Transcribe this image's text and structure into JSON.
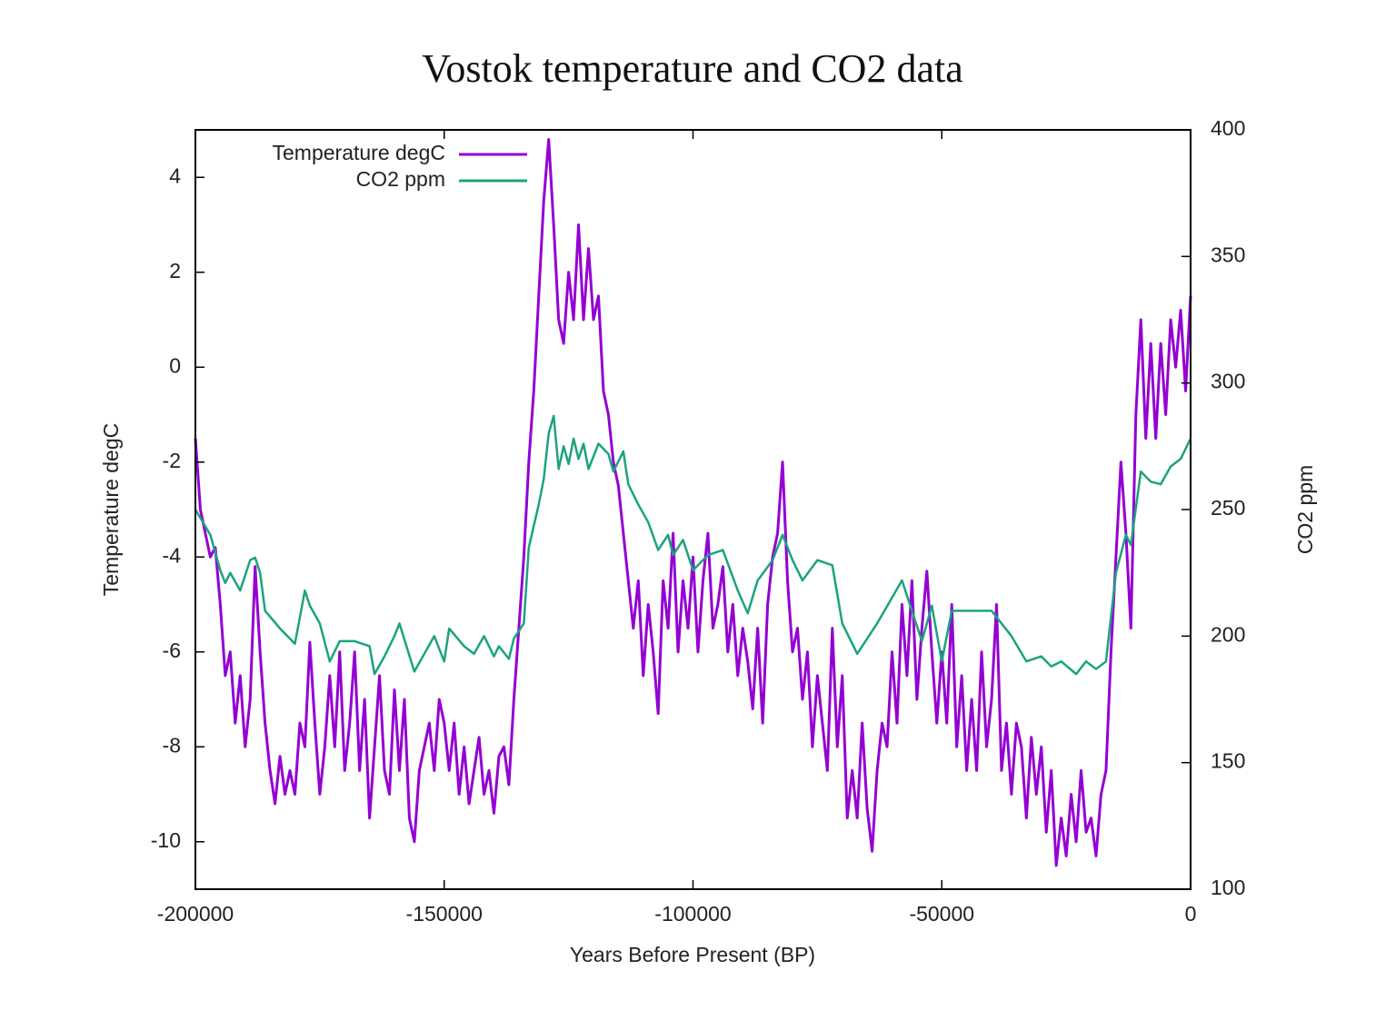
{
  "chart_data": {
    "type": "line",
    "title": "Vostok temperature and CO2 data",
    "xlabel": "Years Before Present (BP)",
    "ylabel": "Temperature degC",
    "y2label": "CO2 ppm",
    "xlim": [
      -200000,
      0
    ],
    "xticks": [
      -200000,
      -150000,
      -100000,
      -50000,
      0
    ],
    "ylim": [
      -11,
      5
    ],
    "yticks": [
      -10,
      -8,
      -6,
      -4,
      -2,
      0,
      2,
      4
    ],
    "y2lim": [
      100,
      400
    ],
    "y2ticks": [
      100,
      150,
      200,
      250,
      300,
      350,
      400
    ],
    "legend": "top-left",
    "series": [
      {
        "name": "Temperature degC",
        "color": "#9400d3",
        "x": [
          -200000,
          -199000,
          -198000,
          -197000,
          -196000,
          -195000,
          -194000,
          -193000,
          -192000,
          -191000,
          -190000,
          -189000,
          -188000,
          -187000,
          -186000,
          -185000,
          -184000,
          -183000,
          -182000,
          -181000,
          -180000,
          -179000,
          -178000,
          -177000,
          -176000,
          -175000,
          -174000,
          -173000,
          -172000,
          -171000,
          -170000,
          -169000,
          -168000,
          -167000,
          -166000,
          -165000,
          -164000,
          -163000,
          -162000,
          -161000,
          -160000,
          -159000,
          -158000,
          -157000,
          -156000,
          -155000,
          -154000,
          -153000,
          -152000,
          -151000,
          -150000,
          -149000,
          -148000,
          -147000,
          -146000,
          -145000,
          -144000,
          -143000,
          -142000,
          -141000,
          -140000,
          -139000,
          -138000,
          -137000,
          -136000,
          -135000,
          -134000,
          -133000,
          -132000,
          -131000,
          -130000,
          -129000,
          -128000,
          -127000,
          -126000,
          -125000,
          -124000,
          -123000,
          -122000,
          -121000,
          -120000,
          -119000,
          -118000,
          -117000,
          -116000,
          -115000,
          -114000,
          -113000,
          -112000,
          -111000,
          -110000,
          -109000,
          -108000,
          -107000,
          -106000,
          -105000,
          -104000,
          -103000,
          -102000,
          -101000,
          -100000,
          -99000,
          -98000,
          -97000,
          -96000,
          -95000,
          -94000,
          -93000,
          -92000,
          -91000,
          -90000,
          -89000,
          -88000,
          -87000,
          -86000,
          -85000,
          -84000,
          -83000,
          -82000,
          -81000,
          -80000,
          -79000,
          -78000,
          -77000,
          -76000,
          -75000,
          -74000,
          -73000,
          -72000,
          -71000,
          -70000,
          -69000,
          -68000,
          -67000,
          -66000,
          -65000,
          -64000,
          -63000,
          -62000,
          -61000,
          -60000,
          -59000,
          -58000,
          -57000,
          -56000,
          -55000,
          -54000,
          -53000,
          -52000,
          -51000,
          -50000,
          -49000,
          -48000,
          -47000,
          -46000,
          -45000,
          -44000,
          -43000,
          -42000,
          -41000,
          -40000,
          -39000,
          -38000,
          -37000,
          -36000,
          -35000,
          -34000,
          -33000,
          -32000,
          -31000,
          -30000,
          -29000,
          -28000,
          -27000,
          -26000,
          -25000,
          -24000,
          -23000,
          -22000,
          -21000,
          -20000,
          -19000,
          -18000,
          -17000,
          -16000,
          -15000,
          -14000,
          -13000,
          -12000,
          -11000,
          -10000,
          -9000,
          -8000,
          -7000,
          -6000,
          -5000,
          -4000,
          -3000,
          -2000,
          -1000,
          0
        ],
        "values": [
          -1.5,
          -3,
          -3.5,
          -4,
          -3.8,
          -5,
          -6.5,
          -6,
          -7.5,
          -6.5,
          -8,
          -7,
          -4.2,
          -6,
          -7.5,
          -8.5,
          -9.2,
          -8.2,
          -9,
          -8.5,
          -9,
          -7.5,
          -8,
          -5.8,
          -7.5,
          -9,
          -8,
          -6.5,
          -8,
          -6,
          -8.5,
          -7.5,
          -6,
          -8.5,
          -7,
          -9.5,
          -8,
          -6.5,
          -8.5,
          -9,
          -6.8,
          -8.5,
          -7,
          -9.5,
          -10,
          -8.5,
          -8,
          -7.5,
          -8.5,
          -7,
          -7.5,
          -8.5,
          -7.5,
          -9,
          -8,
          -9.2,
          -8.5,
          -7.8,
          -9,
          -8.5,
          -9.4,
          -8.2,
          -8,
          -8.8,
          -7,
          -5.5,
          -4,
          -2,
          -0.5,
          1.5,
          3.5,
          4.8,
          3,
          1,
          0.5,
          2,
          1,
          3,
          1,
          2.5,
          1,
          1.5,
          -0.5,
          -1,
          -2,
          -2.5,
          -3.5,
          -4.5,
          -5.5,
          -4.5,
          -6.5,
          -5,
          -6,
          -7.3,
          -4.5,
          -5.5,
          -3.5,
          -6,
          -4.5,
          -5.5,
          -4,
          -6,
          -4.5,
          -3.5,
          -5.5,
          -5,
          -4.2,
          -6,
          -5,
          -6.5,
          -5.5,
          -6.2,
          -7.2,
          -5.5,
          -7.5,
          -5,
          -4,
          -3.5,
          -2,
          -4.5,
          -6,
          -5.5,
          -7,
          -6,
          -8,
          -6.5,
          -7.5,
          -8.5,
          -5.5,
          -8,
          -6.5,
          -9.5,
          -8.5,
          -9.5,
          -7.5,
          -9.3,
          -10.2,
          -8.5,
          -7.5,
          -8,
          -6,
          -7.5,
          -5,
          -6.5,
          -4.5,
          -7,
          -5.5,
          -4.3,
          -6,
          -7.5,
          -6,
          -7.5,
          -5,
          -8,
          -6.5,
          -8.5,
          -7,
          -8.5,
          -6,
          -8,
          -7,
          -5,
          -8.5,
          -7.5,
          -9,
          -7.5,
          -8,
          -9.5,
          -7.8,
          -9,
          -8,
          -9.8,
          -8.5,
          -10.5,
          -9.5,
          -10.3,
          -9,
          -10,
          -8.5,
          -9.8,
          -9.5,
          -10.3,
          -9,
          -8.5,
          -6,
          -4,
          -2,
          -3.5,
          -5.5,
          -1,
          1,
          -1.5,
          0.5,
          -1.5,
          0.5,
          -1,
          1,
          0,
          1.2,
          -0.5,
          1.5
        ]
      },
      {
        "name": "CO2 ppm",
        "color": "#1ba37f",
        "axis": "y2",
        "x": [
          -200000,
          -197000,
          -195000,
          -194000,
          -193000,
          -191000,
          -189000,
          -188000,
          -187000,
          -186000,
          -183000,
          -180000,
          -178000,
          -177000,
          -175000,
          -173000,
          -171000,
          -168000,
          -165000,
          -164000,
          -162000,
          -160000,
          -159000,
          -156000,
          -152000,
          -150000,
          -149000,
          -146000,
          -144000,
          -142000,
          -140000,
          -139000,
          -137000,
          -136000,
          -134000,
          -133000,
          -131000,
          -130000,
          -129000,
          -128000,
          -127000,
          -126000,
          -125000,
          -124000,
          -123000,
          -122000,
          -121000,
          -119000,
          -117000,
          -116000,
          -114000,
          -113000,
          -111000,
          -109000,
          -107000,
          -105000,
          -104000,
          -102000,
          -100000,
          -97000,
          -94000,
          -91000,
          -89000,
          -87000,
          -84000,
          -82000,
          -80000,
          -78000,
          -75000,
          -72000,
          -70000,
          -67000,
          -63000,
          -58000,
          -56000,
          -54000,
          -52000,
          -50000,
          -48000,
          -45000,
          -40000,
          -36000,
          -33000,
          -30000,
          -28000,
          -26000,
          -23000,
          -21000,
          -19000,
          -17000,
          -15000,
          -13000,
          -12000,
          -10000,
          -8000,
          -6000,
          -4000,
          -2000,
          0
        ],
        "values": [
          250,
          240,
          226,
          221,
          225,
          218,
          230,
          231,
          225,
          210,
          203,
          197,
          218,
          212,
          205,
          190,
          198,
          198,
          196,
          185,
          192,
          200,
          205,
          186,
          200,
          190,
          203,
          196,
          193,
          200,
          192,
          196,
          191,
          199,
          205,
          235,
          252,
          262,
          280,
          287,
          266,
          275,
          268,
          278,
          270,
          276,
          266,
          276,
          272,
          265,
          273,
          260,
          252,
          245,
          234,
          240,
          232,
          238,
          226,
          232,
          234,
          218,
          209,
          222,
          230,
          240,
          230,
          222,
          230,
          228,
          205,
          193,
          205,
          222,
          210,
          198,
          212,
          190,
          210,
          210,
          210,
          200,
          190,
          192,
          188,
          190,
          185,
          190,
          187,
          190,
          225,
          240,
          236,
          265,
          261,
          260,
          267,
          270,
          278
        ]
      }
    ]
  }
}
